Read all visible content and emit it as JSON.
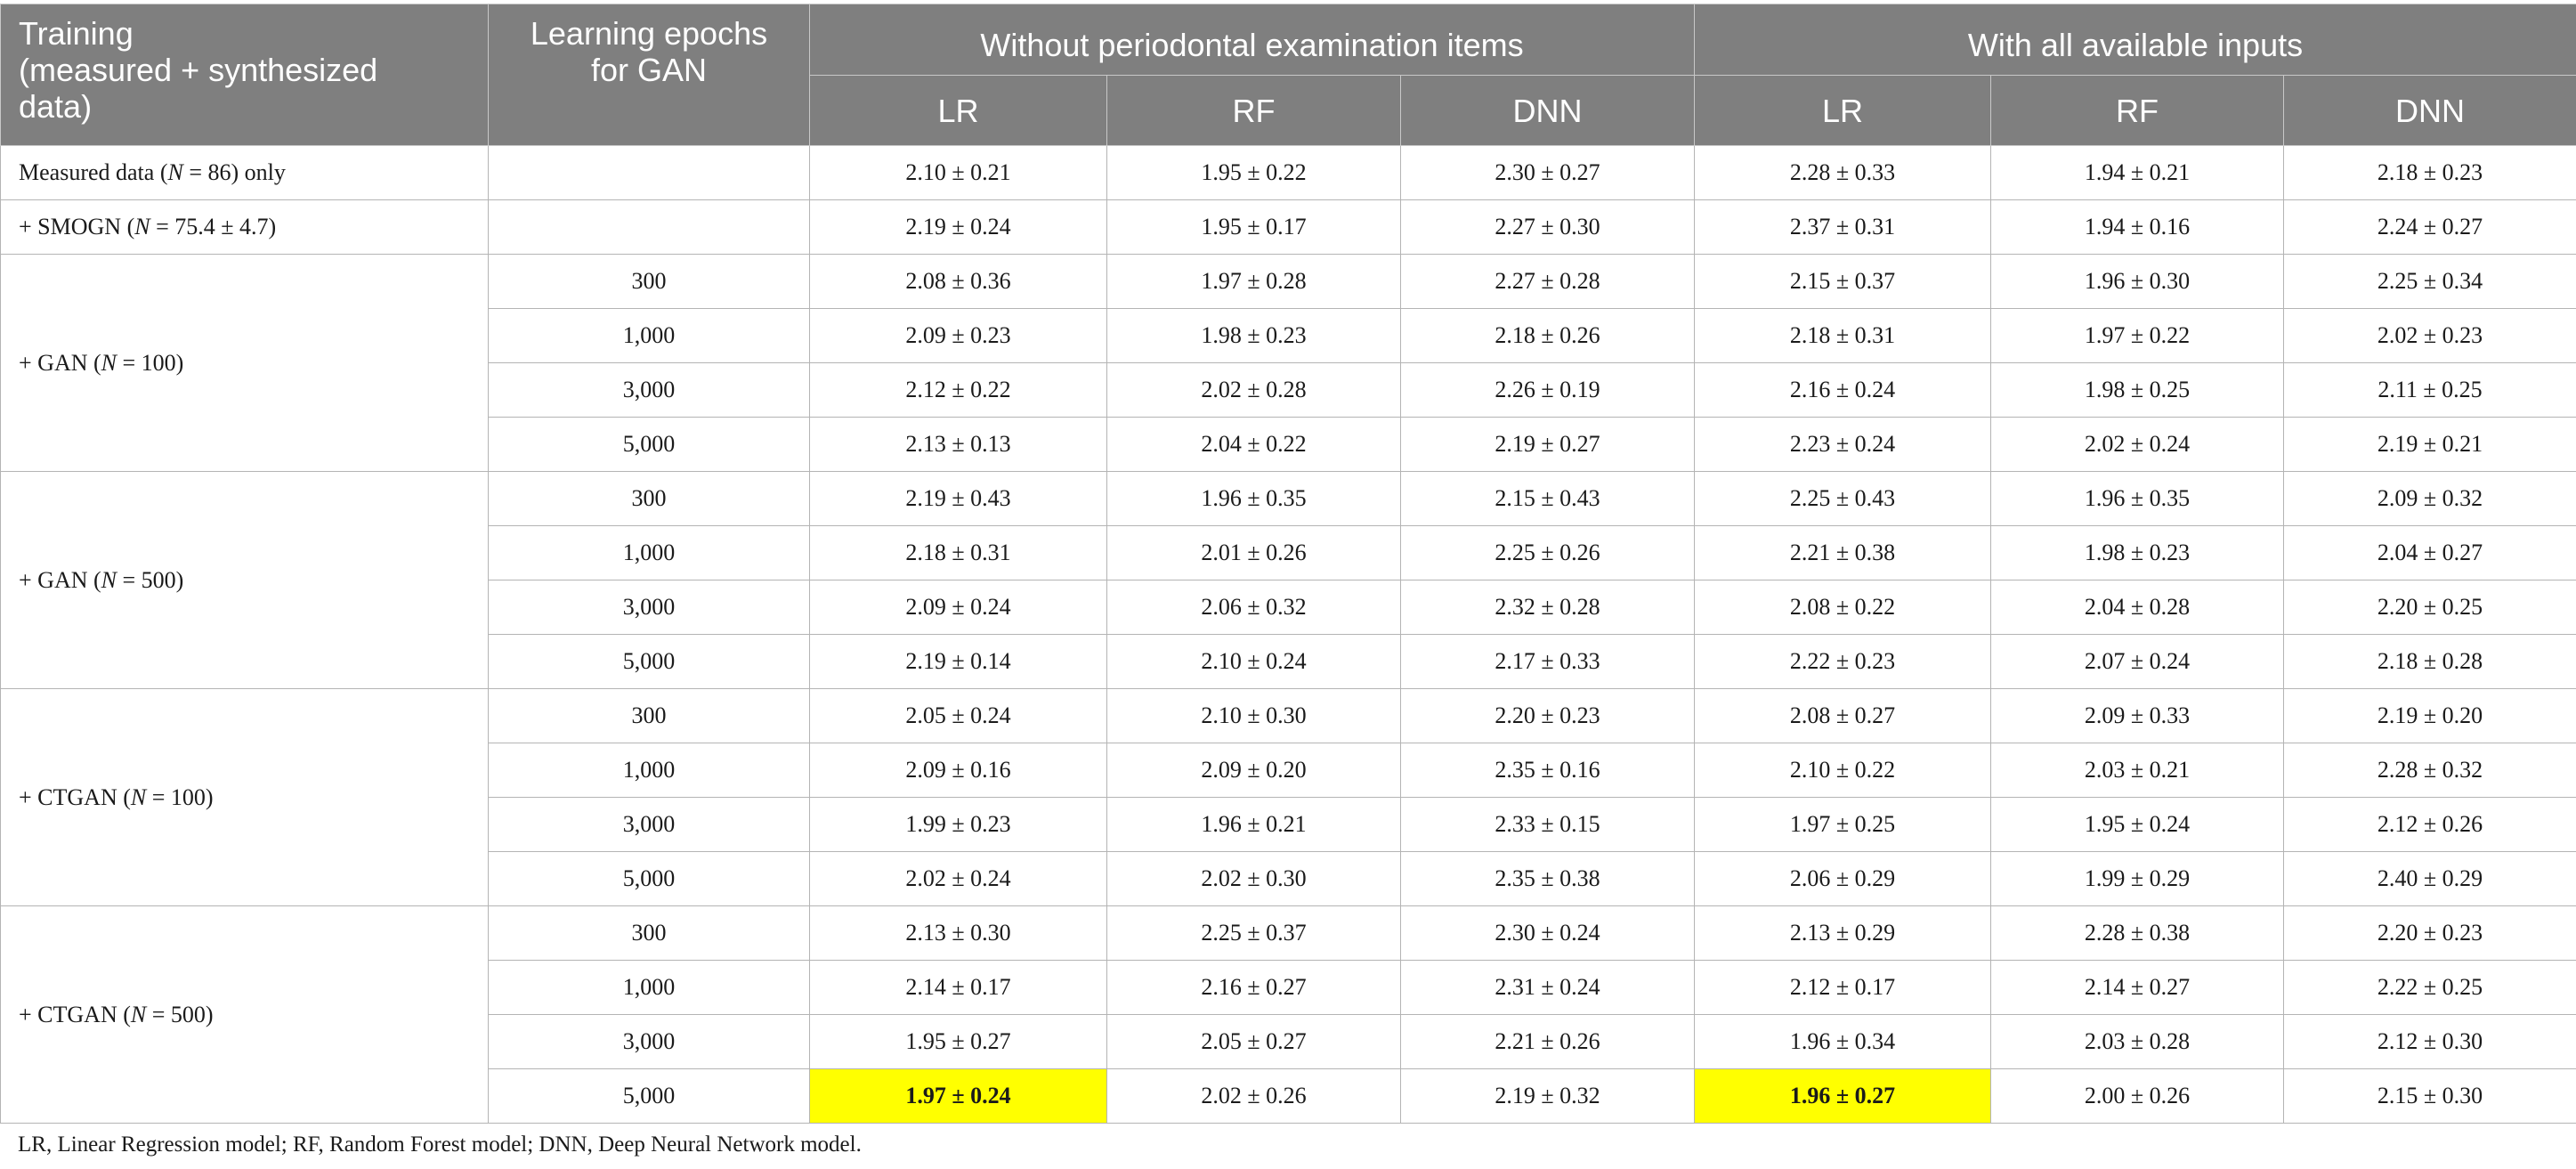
{
  "header": {
    "training_line1": "Training",
    "training_line2": "(measured + synthesized",
    "training_line3": "data)",
    "epochs_line1": "Learning epochs",
    "epochs_line2": "for GAN",
    "group_without": "Without periodontal examination items",
    "group_with": "With all available inputs",
    "models": [
      "LR",
      "RF",
      "DNN",
      "LR",
      "RF",
      "DNN"
    ]
  },
  "rows": [
    {
      "label_pre": "Measured data (",
      "label_n": "N",
      "label_post": " = 86) only",
      "epochs": "",
      "values": [
        "2.10 ± 0.21",
        "1.95 ± 0.22",
        "2.30 ± 0.27",
        "2.28 ± 0.33",
        "1.94 ± 0.21",
        "2.18 ± 0.23"
      ]
    },
    {
      "label_pre": "+ SMOGN (",
      "label_n": "N",
      "label_post": " = 75.4 ± 4.7)",
      "epochs": "",
      "values": [
        "2.19 ± 0.24",
        "1.95 ± 0.17",
        "2.27 ± 0.30",
        "2.37 ± 0.31",
        "1.94 ± 0.16",
        "2.24 ± 0.27"
      ]
    },
    {
      "label_pre": "+ GAN (",
      "label_n": "N",
      "label_post": " = 100)",
      "epochs": "300",
      "values": [
        "2.08 ± 0.36",
        "1.97 ± 0.28",
        "2.27 ± 0.28",
        "2.15 ± 0.37",
        "1.96 ± 0.30",
        "2.25 ± 0.34"
      ]
    },
    {
      "epochs": "1,000",
      "values": [
        "2.09 ± 0.23",
        "1.98 ± 0.23",
        "2.18 ± 0.26",
        "2.18 ± 0.31",
        "1.97 ± 0.22",
        "2.02 ± 0.23"
      ]
    },
    {
      "epochs": "3,000",
      "values": [
        "2.12 ± 0.22",
        "2.02 ± 0.28",
        "2.26 ± 0.19",
        "2.16 ± 0.24",
        "1.98 ± 0.25",
        "2.11 ± 0.25"
      ]
    },
    {
      "epochs": "5,000",
      "values": [
        "2.13 ± 0.13",
        "2.04 ± 0.22",
        "2.19 ± 0.27",
        "2.23 ± 0.24",
        "2.02 ± 0.24",
        "2.19 ± 0.21"
      ]
    },
    {
      "label_pre": "+ GAN (",
      "label_n": "N",
      "label_post": " = 500)",
      "epochs": "300",
      "values": [
        "2.19 ± 0.43",
        "1.96 ± 0.35",
        "2.15 ± 0.43",
        "2.25 ± 0.43",
        "1.96 ± 0.35",
        "2.09 ± 0.32"
      ]
    },
    {
      "epochs": "1,000",
      "values": [
        "2.18 ± 0.31",
        "2.01 ± 0.26",
        "2.25 ± 0.26",
        "2.21 ± 0.38",
        "1.98 ± 0.23",
        "2.04 ± 0.27"
      ]
    },
    {
      "epochs": "3,000",
      "values": [
        "2.09 ± 0.24",
        "2.06 ± 0.32",
        "2.32 ± 0.28",
        "2.08 ± 0.22",
        "2.04 ± 0.28",
        "2.20 ± 0.25"
      ]
    },
    {
      "epochs": "5,000",
      "values": [
        "2.19 ± 0.14",
        "2.10 ± 0.24",
        "2.17 ± 0.33",
        "2.22 ± 0.23",
        "2.07 ± 0.24",
        "2.18 ± 0.28"
      ]
    },
    {
      "label_pre": "+ CTGAN (",
      "label_n": "N",
      "label_post": " = 100)",
      "epochs": "300",
      "values": [
        "2.05 ± 0.24",
        "2.10 ± 0.30",
        "2.20 ± 0.23",
        "2.08 ± 0.27",
        "2.09 ± 0.33",
        "2.19 ± 0.20"
      ]
    },
    {
      "epochs": "1,000",
      "values": [
        "2.09 ± 0.16",
        "2.09 ± 0.20",
        "2.35 ± 0.16",
        "2.10 ± 0.22",
        "2.03 ± 0.21",
        "2.28 ± 0.32"
      ]
    },
    {
      "epochs": "3,000",
      "values": [
        "1.99 ± 0.23",
        "1.96 ± 0.21",
        "2.33 ± 0.15",
        "1.97 ± 0.25",
        "1.95 ± 0.24",
        "2.12 ± 0.26"
      ]
    },
    {
      "epochs": "5,000",
      "values": [
        "2.02 ± 0.24",
        "2.02 ± 0.30",
        "2.35 ± 0.38",
        "2.06 ± 0.29",
        "1.99 ± 0.29",
        "2.40 ± 0.29"
      ]
    },
    {
      "label_pre": "+ CTGAN (",
      "label_n": "N",
      "label_post": " = 500)",
      "epochs": "300",
      "values": [
        "2.13 ± 0.30",
        "2.25 ± 0.37",
        "2.30 ± 0.24",
        "2.13 ± 0.29",
        "2.28 ± 0.38",
        "2.20 ± 0.23"
      ]
    },
    {
      "epochs": "1,000",
      "values": [
        "2.14 ± 0.17",
        "2.16 ± 0.27",
        "2.31 ± 0.24",
        "2.12 ± 0.17",
        "2.14 ± 0.27",
        "2.22 ± 0.25"
      ]
    },
    {
      "epochs": "3,000",
      "values": [
        "1.95 ± 0.27",
        "2.05 ± 0.27",
        "2.21 ± 0.26",
        "1.96 ± 0.34",
        "2.03 ± 0.28",
        "2.12 ± 0.30"
      ]
    },
    {
      "epochs": "5,000",
      "values": [
        "1.97 ± 0.24",
        "2.02 ± 0.26",
        "2.19 ± 0.32",
        "1.96 ± 0.27",
        "2.00 ± 0.26",
        "2.15 ± 0.30"
      ]
    }
  ],
  "highlight_color": "#ffff00",
  "header_color": "#7f7f7f",
  "footnote": "LR, Linear Regression model; RF, Random Forest model; DNN, Deep Neural Network model."
}
